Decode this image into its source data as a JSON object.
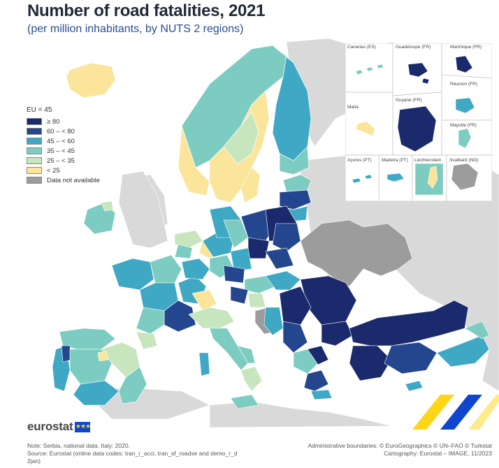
{
  "title": "Number of road fatalities, 2021",
  "subtitle": "(per million inhabitants, by NUTS 2 regions)",
  "legend": {
    "eu_value": "EU = 45",
    "items": [
      {
        "label": "≥ 80",
        "color": "#1a2a6c"
      },
      {
        "label": "60 – < 80",
        "color": "#23468f"
      },
      {
        "label": "45 – < 60",
        "color": "#3fa8c4"
      },
      {
        "label": "35 – < 45",
        "color": "#7dccc1"
      },
      {
        "label": "25 – < 35",
        "color": "#c7e6bd"
      },
      {
        "label": "< 25",
        "color": "#fae59a"
      },
      {
        "label": "Data not available",
        "color": "#9c9c9c"
      }
    ]
  },
  "insets": {
    "canarias": "Canarias (ES)",
    "guadeloupe": "Guadeloupe (FR)",
    "martinique": "Martinique (FR)",
    "reunion": "Réunion (FR)",
    "malta": "Malta",
    "guyane": "Guyane (FR)",
    "mayotte": "Mayotte (FR)",
    "acores": "Açores (PT)",
    "madeira": "Madeira (PT)",
    "liechtenstein": "Liechtenstein",
    "svalbard": "Svalbard (NO)"
  },
  "logo": "eurostat",
  "notes": {
    "line1": "Note: Serbia, national data. Italy: 2020.",
    "line2": "Source: Eurostat (online data codes: tran_r_acci, tran_sf_roadse and demo_r_d",
    "line3": "2jan)"
  },
  "credits": {
    "line1": "Administrative boundaries: © EuroGeographics © UN–FAO © Turkstat",
    "line2": "Cartography: Eurostat – IMAGE, 11/2023"
  }
}
